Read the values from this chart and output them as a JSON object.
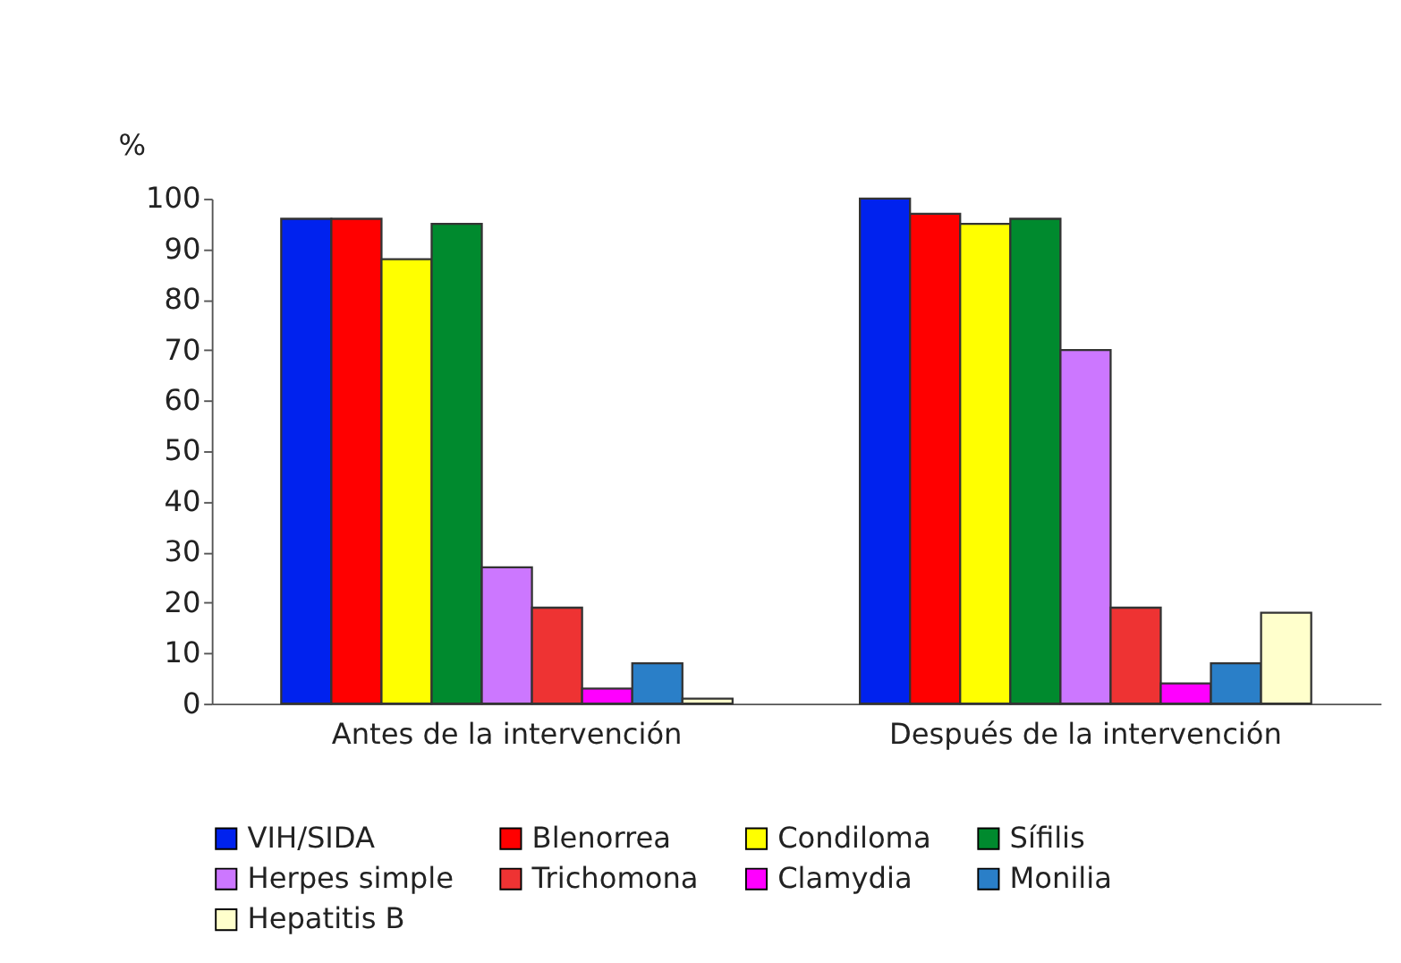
{
  "chart_data": {
    "type": "bar",
    "ylabel": "%",
    "categories": [
      "Antes de la intervención",
      "Después de la intervención"
    ],
    "series": [
      {
        "name": "VIH/SIDA",
        "color": "#0022ee",
        "values": [
          96,
          100
        ]
      },
      {
        "name": "Blenorrea",
        "color": "#ff0000",
        "values": [
          96,
          97
        ]
      },
      {
        "name": "Condiloma",
        "color": "#ffff00",
        "values": [
          88,
          95
        ]
      },
      {
        "name": "Sífilis",
        "color": "#008a2e",
        "values": [
          95,
          96
        ]
      },
      {
        "name": "Herpes simple",
        "color": "#cc77ff",
        "values": [
          27,
          70
        ]
      },
      {
        "name": "Trichomona",
        "color": "#ee3333",
        "values": [
          19,
          19
        ]
      },
      {
        "name": "Clamydia",
        "color": "#ff00ff",
        "values": [
          3,
          4
        ]
      },
      {
        "name": "Monilia",
        "color": "#2a7fc8",
        "values": [
          8,
          8
        ]
      },
      {
        "name": "Hepatitis B",
        "color": "#ffffcc",
        "values": [
          1,
          18
        ]
      }
    ],
    "ylim": [
      0,
      100
    ],
    "yticks": [
      0,
      10,
      20,
      30,
      40,
      50,
      60,
      70,
      80,
      90,
      100
    ],
    "grid": false,
    "legend": "bottom"
  }
}
